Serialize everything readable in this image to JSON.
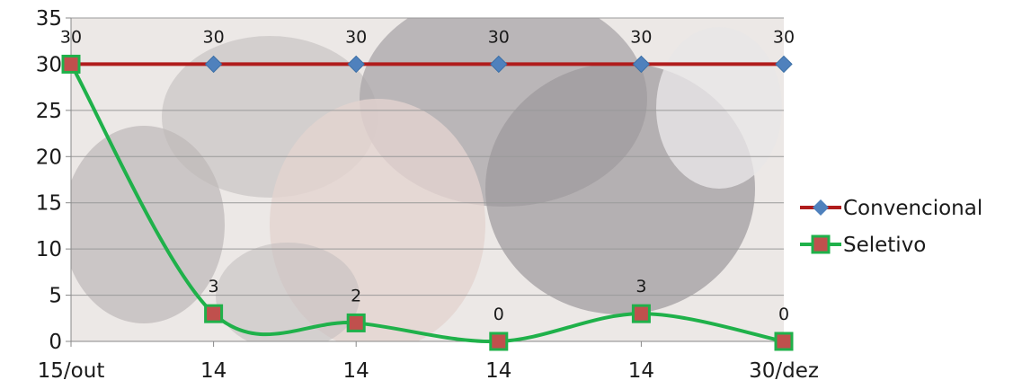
{
  "chart_data": {
    "type": "line",
    "categories": [
      "15/out",
      "14",
      "14",
      "14",
      "14",
      "30/dez"
    ],
    "ylim": [
      0,
      35
    ],
    "yticks": [
      0,
      5,
      10,
      15,
      20,
      25,
      30,
      35
    ],
    "grid": true,
    "legend_position": "right",
    "background": "photo of an animal udder (faded)",
    "series": [
      {
        "name": "Convencional",
        "values": [
          30,
          30,
          30,
          30,
          30,
          30
        ],
        "line_color": "#b01c1c",
        "marker": "diamond",
        "marker_color": "#4f81bd",
        "smooth": false
      },
      {
        "name": "Seletivo",
        "values": [
          30,
          3,
          2,
          0,
          3,
          0
        ],
        "line_color": "#1fb14a",
        "marker": "square",
        "marker_color": "#c0504d",
        "smooth": true
      }
    ]
  }
}
